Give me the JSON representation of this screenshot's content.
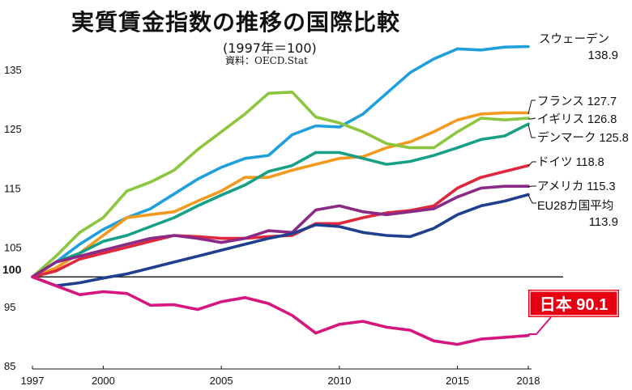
{
  "chart_data": {
    "type": "line",
    "title": "実質賃金指数の推移の国際比較",
    "subtitle": "(1997年＝100)",
    "source": "資料：OECD.Stat",
    "x": [
      1997,
      1998,
      1999,
      2000,
      2001,
      2002,
      2003,
      2004,
      2005,
      2006,
      2007,
      2008,
      2009,
      2010,
      2011,
      2012,
      2013,
      2014,
      2015,
      2016,
      2017,
      2018
    ],
    "x_ticks": [
      "1997",
      "2000",
      "2005",
      "2010",
      "2015",
      "2018"
    ],
    "y_ticks": [
      "85",
      "95",
      "105",
      "115",
      "125",
      "135"
    ],
    "baseline_label": "100",
    "ylim": [
      85,
      140
    ],
    "series": [
      {
        "name": "スウェーデン",
        "label_value": "138.9",
        "color": "#1ea0dc",
        "values": [
          100,
          102.5,
          105.5,
          108,
          110,
          111.5,
          114,
          116.5,
          118.5,
          120,
          120.5,
          124,
          125.5,
          125.3,
          127.5,
          131,
          134.5,
          136.8,
          138.5,
          138.3,
          138.8,
          138.9
        ]
      },
      {
        "name": "フランス",
        "label_value": "127.7",
        "color": "#f39a1e",
        "values": [
          100,
          101.5,
          104,
          107,
          110,
          110.5,
          111,
          112.8,
          114.5,
          116.8,
          116.8,
          118,
          119,
          120,
          120.3,
          121.8,
          122.8,
          124.5,
          126.5,
          127.5,
          127.7,
          127.7
        ]
      },
      {
        "name": "イギリス",
        "label_value": "126.8",
        "color": "#8cc63e",
        "values": [
          100,
          103.5,
          107.5,
          110,
          114.5,
          116,
          118,
          121.5,
          124.5,
          127.5,
          131,
          131.2,
          127,
          126,
          124.5,
          122.5,
          121.8,
          121.8,
          124.5,
          126.8,
          126.5,
          126.8
        ]
      },
      {
        "name": "デンマーク",
        "label_value": "125.8",
        "color": "#16a085",
        "values": [
          100,
          102.5,
          104,
          106,
          107,
          108.5,
          110,
          112,
          113.8,
          115.5,
          117.8,
          118.8,
          121,
          121,
          120,
          119,
          119.5,
          120.5,
          121.8,
          123.2,
          123.8,
          125.8
        ]
      },
      {
        "name": "ドイツ",
        "label_value": "118.8",
        "color": "#e0273c",
        "values": [
          100,
          101,
          103,
          104,
          105,
          106,
          107,
          106.8,
          106.5,
          106.5,
          106.8,
          107,
          109,
          109,
          110,
          110.8,
          111.2,
          112,
          115,
          116.8,
          117.8,
          118.8
        ]
      },
      {
        "name": "アメリカ",
        "label_value": "115.3",
        "color": "#8a2a86",
        "values": [
          100,
          102.5,
          103.5,
          104.5,
          105.5,
          106.5,
          107,
          106.5,
          105.8,
          106.5,
          107.8,
          107.5,
          111.3,
          112,
          111,
          110.5,
          111,
          111.5,
          113.5,
          115,
          115.3,
          115.3
        ]
      },
      {
        "name": "EU28カ国平均",
        "label_value": "113.9",
        "color": "#1f3f8f",
        "values": [
          100,
          98.5,
          99,
          99.8,
          100.5,
          101.5,
          102.5,
          103.5,
          104.5,
          105.5,
          106.5,
          107.3,
          108.8,
          108.5,
          107.5,
          107,
          106.8,
          108.2,
          110.5,
          112,
          112.8,
          113.9
        ]
      },
      {
        "name": "日本",
        "label_value": "90.1",
        "color": "#d6157f",
        "values": [
          100,
          98.5,
          97,
          97.5,
          97.2,
          95.2,
          95.3,
          94.5,
          95.8,
          96.5,
          95.5,
          93.5,
          90.5,
          92,
          92.5,
          91.5,
          91,
          89.2,
          88.6,
          89.5,
          89.8,
          90.1
        ]
      }
    ]
  }
}
